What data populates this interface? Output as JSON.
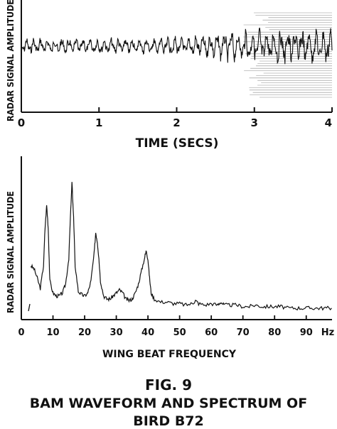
{
  "chart_data": [
    {
      "type": "line",
      "xlabel": "TIME (SECS)",
      "ylabel": "RADAR SIGNAL AMPLITUDE",
      "xlim": [
        0,
        4
      ],
      "x_ticks": [
        "0",
        "1",
        "2",
        "3",
        "4"
      ],
      "grid": false,
      "series": [
        {
          "description_of_signal": "oscillating waveform around a constant mean; amplitude grows after ~2.5 s",
          "x": [
            0,
            0.5,
            1.0,
            1.5,
            2.0,
            2.5,
            3.0,
            3.5,
            4.0
          ],
          "amplitude_envelope": [
            0.18,
            0.2,
            0.18,
            0.2,
            0.22,
            0.3,
            0.4,
            0.45,
            0.45
          ]
        }
      ]
    },
    {
      "type": "line",
      "xlabel": "WING BEAT FREQUENCY",
      "ylabel": "RADAR SIGNAL AMPLITUDE",
      "x_unit": "Hz",
      "xlim": [
        0,
        100
      ],
      "x_ticks": [
        "0",
        "10",
        "20",
        "30",
        "40",
        "50",
        "60",
        "70",
        "80",
        "90",
        "Hz"
      ],
      "grid": false,
      "series": [
        {
          "x": [
            3,
            4,
            5,
            6,
            7,
            7.5,
            8,
            8.5,
            9,
            10,
            11,
            12,
            13,
            14,
            15,
            15.5,
            16,
            16.5,
            17,
            18,
            19,
            20,
            21,
            22,
            23,
            23.5,
            24,
            24.5,
            25,
            26,
            27,
            28,
            29,
            30,
            31,
            32,
            33,
            34,
            35,
            36,
            37,
            38,
            39,
            39.5,
            40,
            40.5,
            41,
            42,
            44,
            46,
            48,
            50,
            52,
            54,
            55,
            56,
            58,
            60,
            62,
            63,
            64,
            66,
            68,
            70,
            72,
            74,
            76,
            78,
            80,
            82,
            84,
            86,
            88,
            90,
            92,
            94,
            96,
            98
          ],
          "y": [
            0.3,
            0.28,
            0.22,
            0.15,
            0.3,
            0.55,
            0.7,
            0.55,
            0.2,
            0.12,
            0.1,
            0.1,
            0.12,
            0.18,
            0.35,
            0.62,
            0.85,
            0.62,
            0.3,
            0.13,
            0.11,
            0.1,
            0.12,
            0.2,
            0.38,
            0.52,
            0.46,
            0.35,
            0.2,
            0.1,
            0.08,
            0.08,
            0.1,
            0.12,
            0.14,
            0.12,
            0.08,
            0.07,
            0.08,
            0.12,
            0.18,
            0.27,
            0.36,
            0.4,
            0.34,
            0.22,
            0.12,
            0.08,
            0.06,
            0.06,
            0.05,
            0.05,
            0.04,
            0.05,
            0.07,
            0.05,
            0.04,
            0.05,
            0.04,
            0.06,
            0.04,
            0.04,
            0.04,
            0.03,
            0.03,
            0.04,
            0.03,
            0.03,
            0.03,
            0.03,
            0.02,
            0.02,
            0.02,
            0.02,
            0.02,
            0.02,
            0.02,
            0.02
          ]
        }
      ]
    }
  ],
  "figure": {
    "caption_number": "FIG. 9",
    "caption_line1": "BAM WAVEFORM AND SPECTRUM OF",
    "caption_line2": "BIRD   B72"
  },
  "colors": {
    "ink": "#111111",
    "background": "#ffffff"
  }
}
